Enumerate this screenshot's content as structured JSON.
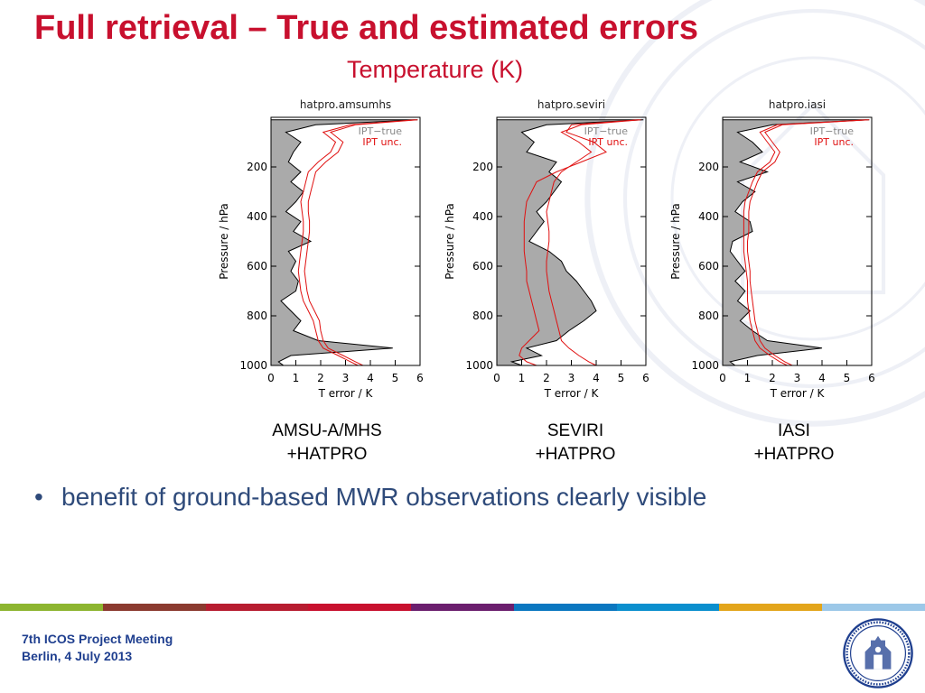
{
  "slide": {
    "title": "Full retrieval – True and estimated errors",
    "subtitle": "Temperature (K)",
    "bullet": "benefit of ground-based MWR observations clearly visible",
    "footer_line1": "7th ICOS Project Meeting",
    "footer_line2": "Berlin, 4 July 2013",
    "color_bar": [
      "#8db530",
      "#8b3a2f",
      "#b71c30",
      "#c8102e",
      "#6b1f6e",
      "#0a77c0",
      "#0a8fce",
      "#e3a51b",
      "#9cc8e8"
    ],
    "logo_icon": "university-seal-icon"
  },
  "chart_data": [
    {
      "type": "line",
      "panel_title": "hatpro.amsumhs",
      "caption_line1": "AMSU-A/MHS",
      "caption_line2": "+HATPRO",
      "xlabel": "T error / K",
      "ylabel": "Pressure / hPa",
      "xlim": [
        0,
        6
      ],
      "ylim": [
        1000,
        0
      ],
      "x_ticks": [
        "0",
        "1",
        "2",
        "3",
        "4",
        "5",
        "6"
      ],
      "y_ticks": [
        "200",
        "400",
        "600",
        "800",
        "1000"
      ],
      "legend": [
        "IPT−true",
        "IPT unc."
      ],
      "series": [
        {
          "name": "IPT−true",
          "style": "filled-gray",
          "pressure": [
            10,
            30,
            60,
            100,
            140,
            180,
            220,
            260,
            300,
            340,
            380,
            420,
            460,
            500,
            540,
            580,
            620,
            660,
            700,
            740,
            780,
            820,
            860,
            900,
            930,
            960,
            985,
            1000
          ],
          "values": [
            5.9,
            1.8,
            0.6,
            1.2,
            0.9,
            0.7,
            1.2,
            0.8,
            1.3,
            1.0,
            0.6,
            1.2,
            0.9,
            1.6,
            0.7,
            1.0,
            0.8,
            1.1,
            1.0,
            0.4,
            0.8,
            1.2,
            0.9,
            1.9,
            4.9,
            0.8,
            0.3,
            0.5
          ]
        },
        {
          "name": "IPT unc.",
          "style": "red-line",
          "pressure": [
            10,
            30,
            60,
            100,
            140,
            180,
            220,
            260,
            300,
            340,
            380,
            420,
            460,
            500,
            540,
            580,
            620,
            660,
            700,
            740,
            780,
            820,
            860,
            900,
            930,
            960,
            985,
            1000
          ],
          "values": [
            5.8,
            3.2,
            2.1,
            2.6,
            2.4,
            1.9,
            1.5,
            1.4,
            1.3,
            1.2,
            1.25,
            1.3,
            1.3,
            1.25,
            1.2,
            1.15,
            1.1,
            1.15,
            1.2,
            1.3,
            1.5,
            1.7,
            1.8,
            1.9,
            2.1,
            2.7,
            3.2,
            3.5
          ]
        },
        {
          "name": "IPT unc. (upper)",
          "style": "red-line",
          "pressure": [
            10,
            30,
            60,
            100,
            140,
            180,
            220,
            260,
            300,
            340,
            380,
            420,
            460,
            500,
            540,
            580,
            620,
            660,
            700,
            740,
            780,
            820,
            860,
            900,
            930,
            960,
            985,
            1000
          ],
          "values": [
            5.9,
            3.4,
            2.4,
            2.9,
            2.7,
            2.2,
            1.8,
            1.7,
            1.6,
            1.5,
            1.5,
            1.55,
            1.55,
            1.5,
            1.45,
            1.4,
            1.35,
            1.4,
            1.45,
            1.55,
            1.75,
            1.95,
            2.0,
            2.1,
            2.3,
            2.9,
            3.4,
            3.7
          ]
        }
      ]
    },
    {
      "type": "line",
      "panel_title": "hatpro.seviri",
      "caption_line1": "SEVIRI",
      "caption_line2": "+HATPRO",
      "xlabel": "T error / K",
      "ylabel": "Pressure / hPa",
      "xlim": [
        0,
        6
      ],
      "ylim": [
        1000,
        0
      ],
      "x_ticks": [
        "0",
        "1",
        "2",
        "3",
        "4",
        "5",
        "6"
      ],
      "y_ticks": [
        "200",
        "400",
        "600",
        "800",
        "1000"
      ],
      "legend": [
        "IPT−true",
        "IPT unc."
      ],
      "series": [
        {
          "name": "IPT−true",
          "style": "filled-gray",
          "pressure": [
            10,
            30,
            60,
            100,
            140,
            180,
            220,
            260,
            300,
            340,
            380,
            420,
            460,
            500,
            540,
            580,
            620,
            660,
            700,
            740,
            780,
            820,
            860,
            900,
            930,
            960,
            985,
            1000
          ],
          "values": [
            5.9,
            2.0,
            1.0,
            1.5,
            1.2,
            2.4,
            2.1,
            2.6,
            2.3,
            2.0,
            1.6,
            1.9,
            1.6,
            1.3,
            2.1,
            2.6,
            2.8,
            3.2,
            3.5,
            3.8,
            4.0,
            3.5,
            2.9,
            2.4,
            1.2,
            1.8,
            0.6,
            1.0
          ]
        },
        {
          "name": "IPT unc.",
          "style": "red-line",
          "pressure": [
            10,
            30,
            60,
            100,
            140,
            180,
            220,
            260,
            300,
            340,
            380,
            420,
            460,
            500,
            540,
            580,
            620,
            660,
            700,
            740,
            780,
            820,
            860,
            900,
            930,
            960,
            985,
            1000
          ],
          "values": [
            5.8,
            3.4,
            2.6,
            3.3,
            3.8,
            3.2,
            2.6,
            2.3,
            2.2,
            2.1,
            2.0,
            2.05,
            2.1,
            2.1,
            2.05,
            2.0,
            2.0,
            2.05,
            2.1,
            2.2,
            2.3,
            2.4,
            2.5,
            2.6,
            2.9,
            3.3,
            3.7,
            4.0
          ]
        },
        {
          "name": "IPT unc. (lower)",
          "style": "red-line",
          "pressure": [
            10,
            30,
            60,
            100,
            140,
            180,
            220,
            260,
            300,
            340,
            380,
            420,
            460,
            500,
            540,
            580,
            620,
            660,
            700,
            740,
            780,
            820,
            860,
            900,
            930,
            960,
            985,
            1000
          ],
          "values": [
            5.7,
            3.0,
            2.8,
            3.9,
            4.4,
            3.4,
            2.4,
            1.6,
            1.4,
            1.2,
            1.15,
            1.1,
            1.1,
            1.1,
            1.1,
            1.15,
            1.2,
            1.2,
            1.3,
            1.4,
            1.5,
            1.6,
            1.7,
            1.3,
            1.0,
            0.9,
            1.2,
            1.6
          ]
        }
      ]
    },
    {
      "type": "line",
      "panel_title": "hatpro.iasi",
      "caption_line1": "IASI",
      "caption_line2": "+HATPRO",
      "xlabel": "T error / K",
      "ylabel": "Pressure / hPa",
      "xlim": [
        0,
        6
      ],
      "ylim": [
        1000,
        0
      ],
      "x_ticks": [
        "0",
        "1",
        "2",
        "3",
        "4",
        "5",
        "6"
      ],
      "y_ticks": [
        "200",
        "400",
        "600",
        "800",
        "1000"
      ],
      "legend": [
        "IPT−true",
        "IPT unc."
      ],
      "series": [
        {
          "name": "IPT−true",
          "style": "filled-gray",
          "pressure": [
            10,
            30,
            60,
            100,
            140,
            180,
            220,
            260,
            300,
            340,
            380,
            420,
            460,
            500,
            540,
            580,
            620,
            660,
            700,
            740,
            780,
            820,
            860,
            900,
            930,
            960,
            985,
            1000
          ],
          "values": [
            5.9,
            2.0,
            0.6,
            1.2,
            1.6,
            0.7,
            1.8,
            0.6,
            1.3,
            0.8,
            0.5,
            1.1,
            1.2,
            0.4,
            0.3,
            0.6,
            0.9,
            0.5,
            0.9,
            0.6,
            1.1,
            0.7,
            1.2,
            1.8,
            4.0,
            1.4,
            0.3,
            0.5
          ]
        },
        {
          "name": "IPT unc.",
          "style": "red-line",
          "pressure": [
            10,
            30,
            60,
            100,
            140,
            180,
            220,
            260,
            300,
            340,
            380,
            420,
            460,
            500,
            540,
            580,
            620,
            660,
            700,
            740,
            780,
            820,
            860,
            900,
            930,
            960,
            985,
            1000
          ],
          "values": [
            5.8,
            2.2,
            1.5,
            1.8,
            2.1,
            1.9,
            1.4,
            1.2,
            1.05,
            0.9,
            0.85,
            0.85,
            0.85,
            0.85,
            0.85,
            0.9,
            0.95,
            1.0,
            1.0,
            1.0,
            1.05,
            1.1,
            1.2,
            1.3,
            1.5,
            1.9,
            2.3,
            2.6
          ]
        },
        {
          "name": "IPT unc. (upper)",
          "style": "red-line",
          "pressure": [
            10,
            30,
            60,
            100,
            140,
            180,
            220,
            260,
            300,
            340,
            380,
            420,
            460,
            500,
            540,
            580,
            620,
            660,
            700,
            740,
            780,
            820,
            860,
            900,
            930,
            960,
            985,
            1000
          ],
          "values": [
            5.9,
            2.4,
            1.7,
            2.0,
            2.3,
            2.1,
            1.6,
            1.4,
            1.25,
            1.1,
            1.05,
            1.05,
            1.05,
            1.0,
            1.0,
            1.05,
            1.1,
            1.1,
            1.15,
            1.2,
            1.25,
            1.3,
            1.4,
            1.5,
            1.7,
            2.1,
            2.5,
            2.8
          ]
        }
      ]
    }
  ]
}
